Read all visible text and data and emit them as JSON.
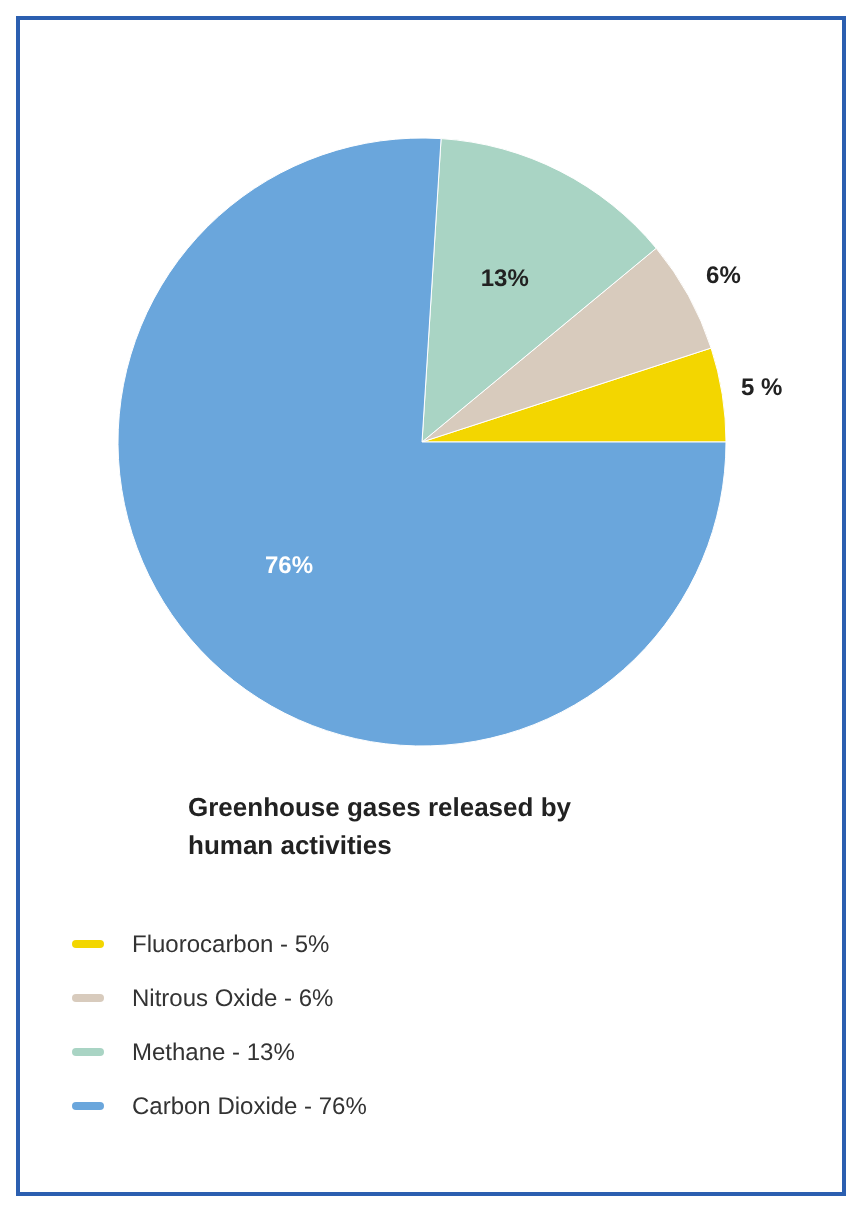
{
  "chart_data": {
    "type": "pie",
    "legend_title": "Greenhouse gases released by human activities",
    "categories": [
      "Fluorocarbon - 5%",
      "Nitrous Oxide - 6%",
      "Methane - 13%",
      "Carbon Dioxide - 76%"
    ],
    "values": [
      5,
      6,
      13,
      76
    ],
    "colors": [
      "#f3d600",
      "#d8cbbd",
      "#a9d4c4",
      "#6aa6dc"
    ],
    "value_labels": [
      "5 %",
      "6%",
      "13%",
      "76%"
    ],
    "legend": "bottom"
  }
}
